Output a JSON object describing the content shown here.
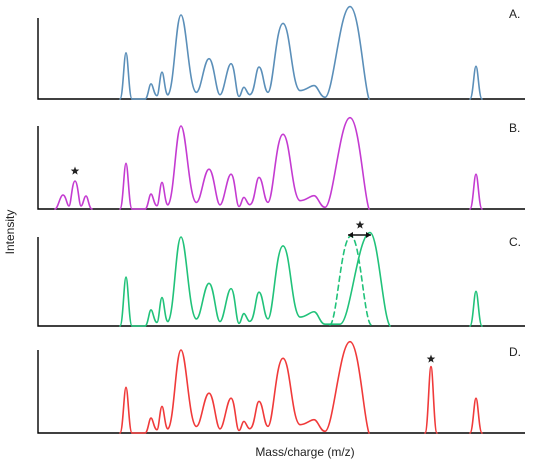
{
  "axis": {
    "y_title": "Intensity",
    "x_title": "Mass/charge (m/z)"
  },
  "panels": [
    {
      "label": "A.",
      "color": "#5b8fb9",
      "markers": []
    },
    {
      "label": "B.",
      "color": "#c43bd1",
      "markers": [
        "star"
      ]
    },
    {
      "label": "C.",
      "color": "#21c27a",
      "markers": [
        "star",
        "double-arrow",
        "dashed-peak"
      ]
    },
    {
      "label": "D.",
      "color": "#f03a3a",
      "markers": [
        "star"
      ]
    }
  ]
}
